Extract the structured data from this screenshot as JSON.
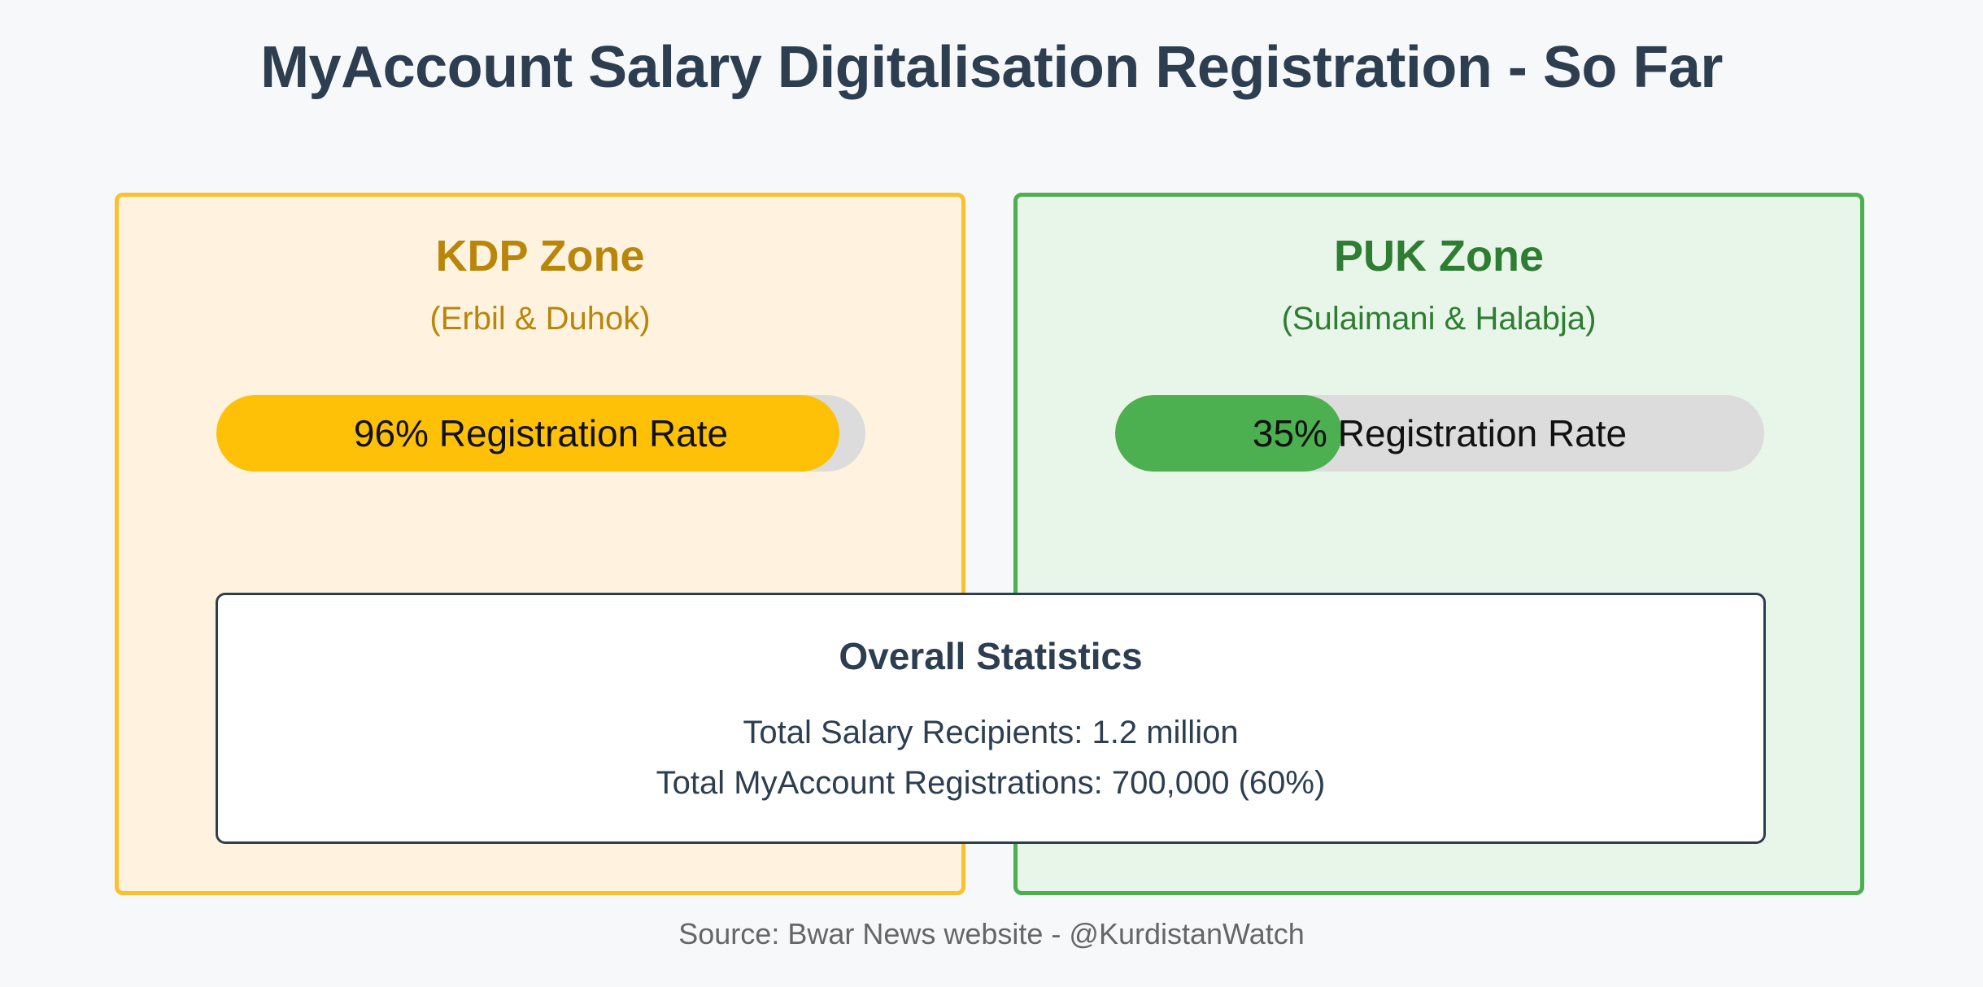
{
  "title": "MyAccount Salary Digitalisation Registration - So Far",
  "zones": {
    "kdp": {
      "name": "KDP Zone",
      "subtitle": "(Erbil & Duhok)",
      "rate_fraction": 0.96,
      "rate_label": "96% Registration Rate",
      "accent_color": "#ffc107",
      "border_color": "#fbc02d",
      "background_color": "#fff3e0"
    },
    "puk": {
      "name": "PUK Zone",
      "subtitle": "(Sulaimani & Halabja)",
      "rate_fraction": 0.35,
      "rate_label": "35% Registration Rate",
      "accent_color": "#4caf50",
      "border_color": "#4caf50",
      "background_color": "#e8f5e9"
    }
  },
  "overall": {
    "title": "Overall Statistics",
    "recipients": "Total Salary Recipients: 1.2 million",
    "registrations": "Total MyAccount Registrations: 700,000 (60%)"
  },
  "source": "Source: Bwar News website - @KurdistanWatch"
}
